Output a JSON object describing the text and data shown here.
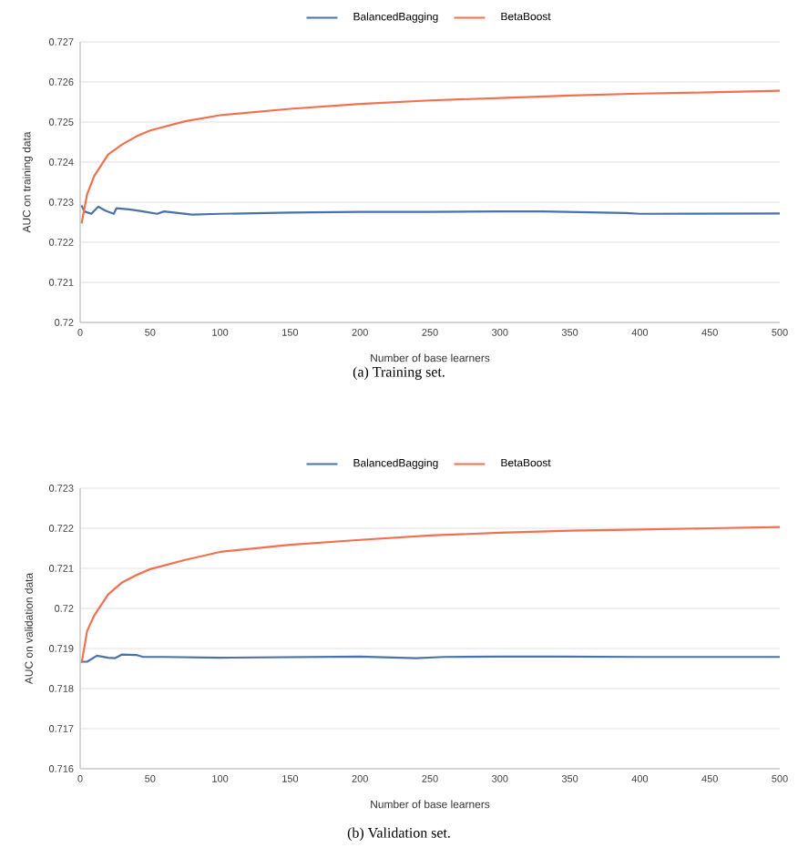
{
  "chart_data": [
    {
      "type": "line",
      "xlabel": "Number of base learners",
      "ylabel": "AUC on training data",
      "annotations": [
        "(a) Training set."
      ],
      "legend": "top",
      "grid": "y",
      "xlim": [
        0,
        500
      ],
      "xticks": [
        0,
        50,
        100,
        150,
        200,
        250,
        300,
        350,
        400,
        450,
        500
      ],
      "ylim": [
        0.72,
        0.727
      ],
      "yticks": [
        0.72,
        0.721,
        0.722,
        0.723,
        0.724,
        0.725,
        0.726,
        0.727
      ],
      "series": [
        {
          "name": "BalancedBagging",
          "color": "#4a72a8",
          "x": [
            1,
            3,
            8,
            13,
            18,
            24,
            26,
            35,
            45,
            55,
            60,
            80,
            100,
            150,
            200,
            250,
            300,
            330,
            390,
            400,
            500
          ],
          "values": [
            0.72292,
            0.72277,
            0.72271,
            0.72289,
            0.72279,
            0.72271,
            0.72285,
            0.72282,
            0.72277,
            0.72271,
            0.72277,
            0.72269,
            0.72271,
            0.72274,
            0.72276,
            0.72276,
            0.72277,
            0.72277,
            0.72273,
            0.72271,
            0.72272
          ]
        },
        {
          "name": "BetaBoost",
          "color": "#f07050",
          "x": [
            1,
            5,
            10,
            20,
            30,
            40,
            50,
            75,
            100,
            150,
            200,
            250,
            300,
            350,
            400,
            450,
            500
          ],
          "values": [
            0.72247,
            0.7232,
            0.72365,
            0.72419,
            0.72444,
            0.72464,
            0.72479,
            0.72502,
            0.72517,
            0.72533,
            0.72545,
            0.72554,
            0.7256,
            0.72566,
            0.72571,
            0.72574,
            0.72578
          ]
        }
      ]
    },
    {
      "type": "line",
      "xlabel": "Number of base learners",
      "ylabel": "AUC on validation data",
      "annotations": [
        "(b) Validation set."
      ],
      "legend": "top",
      "grid": "y",
      "xlim": [
        0,
        500
      ],
      "xticks": [
        0,
        50,
        100,
        150,
        200,
        250,
        300,
        350,
        400,
        450,
        500
      ],
      "ylim": [
        0.716,
        0.723
      ],
      "yticks": [
        0.716,
        0.717,
        0.718,
        0.719,
        0.72,
        0.721,
        0.722,
        0.723
      ],
      "series": [
        {
          "name": "BalancedBagging",
          "color": "#4a72a8",
          "x": [
            1,
            5,
            12,
            20,
            25,
            30,
            40,
            45,
            60,
            100,
            200,
            240,
            260,
            300,
            340,
            400,
            500
          ],
          "values": [
            0.71867,
            0.71867,
            0.71882,
            0.71877,
            0.71876,
            0.71885,
            0.71884,
            0.71879,
            0.71879,
            0.71877,
            0.7188,
            0.71876,
            0.71879,
            0.7188,
            0.7188,
            0.71879,
            0.71879
          ]
        },
        {
          "name": "BetaBoost",
          "color": "#f07050",
          "x": [
            1,
            5,
            10,
            20,
            30,
            40,
            50,
            75,
            100,
            150,
            200,
            250,
            300,
            350,
            400,
            450,
            500
          ],
          "values": [
            0.71864,
            0.71944,
            0.71982,
            0.72035,
            0.72065,
            0.72083,
            0.72098,
            0.72121,
            0.72141,
            0.72159,
            0.72171,
            0.72182,
            0.72189,
            0.72194,
            0.72197,
            0.722,
            0.72203
          ]
        }
      ]
    }
  ]
}
